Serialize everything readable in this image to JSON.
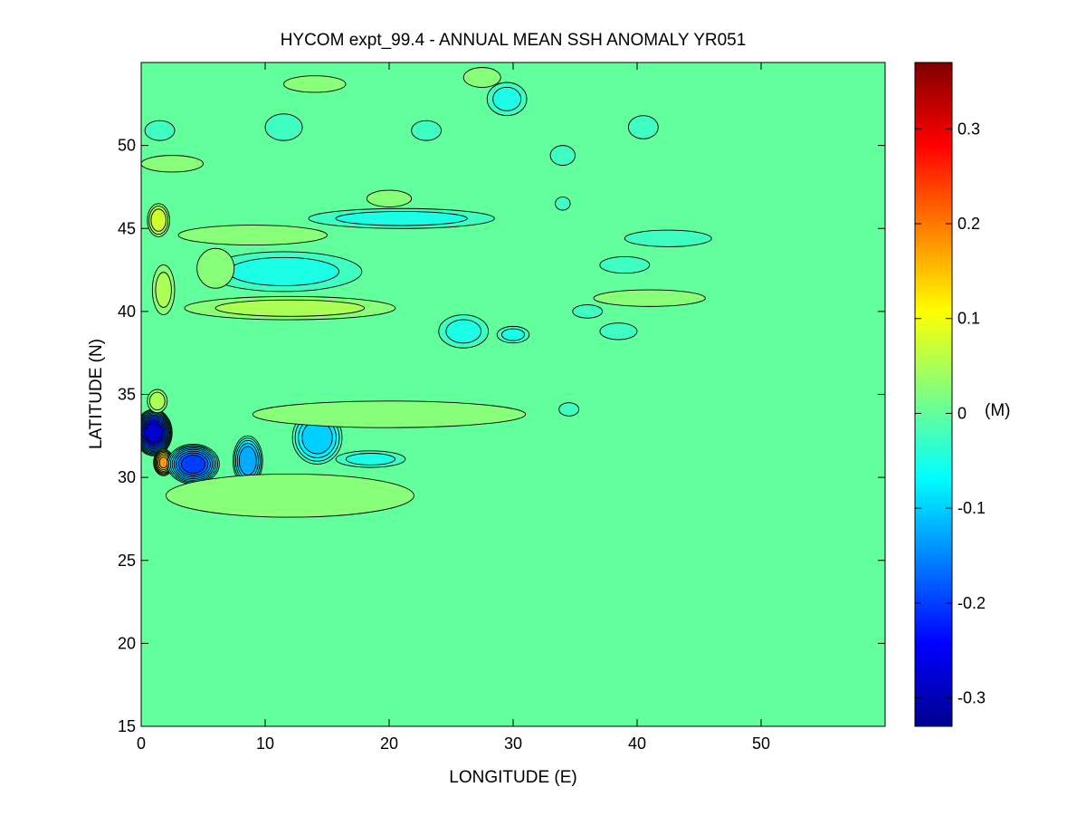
{
  "chart_data": {
    "type": "heatmap",
    "title": "HYCOM expt_99.4 - ANNUAL MEAN SSH ANOMALY YR051",
    "xlabel": "LONGITUDE (E)",
    "ylabel": "LATITUDE (N)",
    "xlim": [
      0,
      60
    ],
    "ylim": [
      15,
      55
    ],
    "xticks": [
      0,
      10,
      20,
      30,
      40,
      50
    ],
    "yticks": [
      15,
      20,
      25,
      30,
      35,
      40,
      45,
      50
    ],
    "background_value": 0,
    "colorbar": {
      "label": "(M)",
      "range": [
        -0.33,
        0.37
      ],
      "ticks": [
        -0.3,
        -0.2,
        -0.1,
        0,
        0.1,
        0.2,
        0.3
      ],
      "colormap": "jet"
    },
    "contour_interval": 0.025,
    "features": [
      {
        "name": "eddy-1",
        "lon": 1.0,
        "lat": 32.7,
        "rx": 1.5,
        "ry": 1.4,
        "value": -0.3
      },
      {
        "name": "eddy-2",
        "lon": 1.8,
        "lat": 30.9,
        "rx": 0.8,
        "ry": 0.8,
        "value": 0.18
      },
      {
        "name": "eddy-3",
        "lon": 4.2,
        "lat": 30.8,
        "rx": 2.1,
        "ry": 1.2,
        "value": -0.22
      },
      {
        "name": "eddy-4",
        "lon": 8.6,
        "lat": 31.0,
        "rx": 1.2,
        "ry": 1.5,
        "value": -0.15
      },
      {
        "name": "eddy-5",
        "lon": 14.2,
        "lat": 32.4,
        "rx": 2.0,
        "ry": 1.6,
        "value": -0.12
      },
      {
        "name": "eddy-6",
        "lon": 1.4,
        "lat": 45.5,
        "rx": 0.9,
        "ry": 1.0,
        "value": 0.09
      },
      {
        "name": "eddy-7",
        "lon": 1.3,
        "lat": 34.6,
        "rx": 0.8,
        "ry": 0.7,
        "value": 0.06
      },
      {
        "name": "eddy-8",
        "lon": 1.8,
        "lat": 41.3,
        "rx": 0.9,
        "ry": 1.5,
        "value": 0.05
      },
      {
        "name": "eddy-9",
        "lon": 11.5,
        "lat": 42.4,
        "rx": 6.3,
        "ry": 1.2,
        "value": -0.05
      },
      {
        "name": "eddy-10",
        "lon": 21.0,
        "lat": 45.6,
        "rx": 7.5,
        "ry": 0.6,
        "value": -0.05
      },
      {
        "name": "eddy-11",
        "lon": 12.0,
        "lat": 40.2,
        "rx": 8.5,
        "ry": 0.7,
        "value": 0.05
      },
      {
        "name": "eddy-12",
        "lon": 6.0,
        "lat": 42.6,
        "rx": 1.5,
        "ry": 1.2,
        "value": 0.04
      },
      {
        "name": "eddy-13",
        "lon": 9.0,
        "lat": 44.6,
        "rx": 6.0,
        "ry": 0.6,
        "value": 0.04
      },
      {
        "name": "eddy-14",
        "lon": 20.0,
        "lat": 33.8,
        "rx": 11.0,
        "ry": 0.8,
        "value": 0.04
      },
      {
        "name": "eddy-15",
        "lon": 12.0,
        "lat": 28.9,
        "rx": 10.0,
        "ry": 1.3,
        "value": 0.04
      },
      {
        "name": "eddy-16",
        "lon": 26.0,
        "lat": 38.8,
        "rx": 2.0,
        "ry": 1.0,
        "value": -0.05
      },
      {
        "name": "eddy-17",
        "lon": 30.0,
        "lat": 38.6,
        "rx": 1.3,
        "ry": 0.5,
        "value": -0.05
      },
      {
        "name": "eddy-18",
        "lon": 18.5,
        "lat": 31.1,
        "rx": 2.8,
        "ry": 0.5,
        "value": -0.05
      },
      {
        "name": "eddy-19",
        "lon": 41.0,
        "lat": 40.8,
        "rx": 4.5,
        "ry": 0.5,
        "value": 0.04
      },
      {
        "name": "eddy-20",
        "lon": 42.5,
        "lat": 44.4,
        "rx": 3.5,
        "ry": 0.5,
        "value": -0.04
      },
      {
        "name": "eddy-21",
        "lon": 39.0,
        "lat": 42.8,
        "rx": 2.0,
        "ry": 0.5,
        "value": -0.04
      },
      {
        "name": "eddy-22",
        "lon": 38.5,
        "lat": 38.8,
        "rx": 1.5,
        "ry": 0.5,
        "value": -0.04
      },
      {
        "name": "eddy-23",
        "lon": 36.0,
        "lat": 40.0,
        "rx": 1.2,
        "ry": 0.4,
        "value": -0.04
      },
      {
        "name": "eddy-24",
        "lon": 34.5,
        "lat": 34.1,
        "rx": 0.8,
        "ry": 0.4,
        "value": -0.04
      },
      {
        "name": "eddy-25",
        "lon": 29.5,
        "lat": 52.8,
        "rx": 1.6,
        "ry": 1.0,
        "value": -0.05
      },
      {
        "name": "eddy-26",
        "lon": 40.5,
        "lat": 51.1,
        "rx": 1.2,
        "ry": 0.7,
        "value": -0.04
      },
      {
        "name": "eddy-27",
        "lon": 34.0,
        "lat": 49.4,
        "rx": 1.0,
        "ry": 0.6,
        "value": -0.04
      },
      {
        "name": "eddy-28",
        "lon": 11.5,
        "lat": 51.1,
        "rx": 1.5,
        "ry": 0.8,
        "value": -0.04
      },
      {
        "name": "eddy-29",
        "lon": 27.5,
        "lat": 54.1,
        "rx": 1.5,
        "ry": 0.6,
        "value": 0.04
      },
      {
        "name": "eddy-30",
        "lon": 14.0,
        "lat": 53.7,
        "rx": 2.5,
        "ry": 0.5,
        "value": 0.04
      },
      {
        "name": "eddy-31",
        "lon": 20.0,
        "lat": 46.8,
        "rx": 1.8,
        "ry": 0.5,
        "value": 0.04
      },
      {
        "name": "eddy-32",
        "lon": 2.5,
        "lat": 48.9,
        "rx": 2.5,
        "ry": 0.5,
        "value": 0.03
      },
      {
        "name": "eddy-33",
        "lon": 1.5,
        "lat": 50.9,
        "rx": 1.2,
        "ry": 0.6,
        "value": -0.04
      },
      {
        "name": "eddy-34",
        "lon": 34.0,
        "lat": 46.5,
        "rx": 0.6,
        "ry": 0.4,
        "value": -0.04
      },
      {
        "name": "eddy-35",
        "lon": 23.0,
        "lat": 50.9,
        "rx": 1.2,
        "ry": 0.6,
        "value": -0.04
      }
    ]
  }
}
